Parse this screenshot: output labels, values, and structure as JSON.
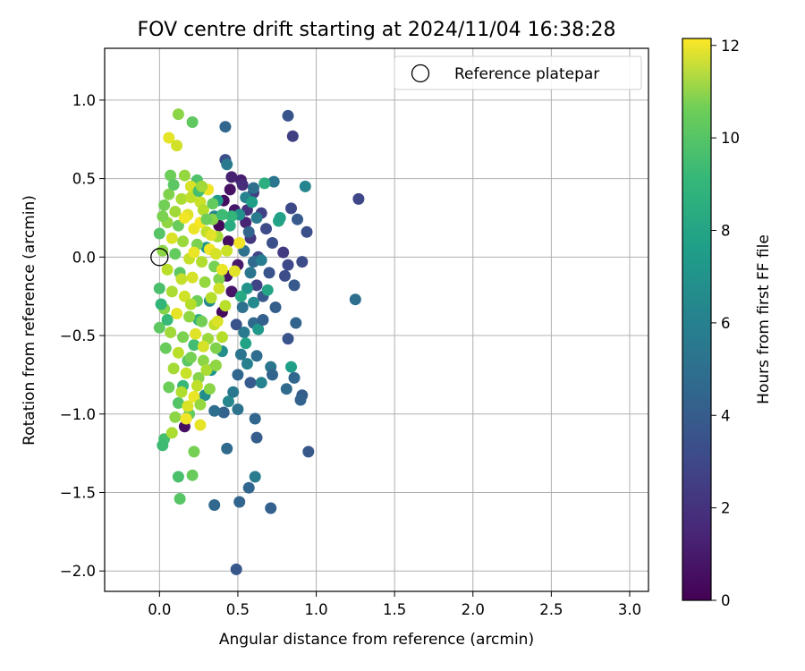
{
  "chart_data": {
    "type": "scatter",
    "title": "FOV centre drift starting at 2024/11/04 16:38:28",
    "xlabel": "Angular distance from reference (arcmin)",
    "ylabel": "Rotation from reference (arcmin)",
    "xlim": [
      -0.35,
      3.12
    ],
    "ylim": [
      -2.13,
      1.33
    ],
    "xticks": [
      0.0,
      0.5,
      1.0,
      1.5,
      2.0,
      2.5,
      3.0
    ],
    "xtick_labels": [
      "0.0",
      "0.5",
      "1.0",
      "1.5",
      "2.0",
      "2.5",
      "3.0"
    ],
    "yticks": [
      -2.0,
      -1.5,
      -1.0,
      -0.5,
      0.0,
      0.5,
      1.0
    ],
    "ytick_labels": [
      "−2.0",
      "−1.5",
      "−1.0",
      "−0.5",
      "0.0",
      "0.5",
      "1.0"
    ],
    "grid": true,
    "legend": {
      "position": "top-right",
      "entries": [
        {
          "label": "Reference platepar",
          "marker": "open-circle",
          "x": 0.0,
          "y": 0.0
        }
      ]
    },
    "colorbar": {
      "label": "Hours from first FF file",
      "colormap": "viridis",
      "min": 0,
      "max": 12.15,
      "ticks": [
        0,
        2,
        4,
        6,
        8,
        10,
        12
      ],
      "tick_labels": [
        "0",
        "2",
        "4",
        "6",
        "8",
        "10",
        "12"
      ]
    },
    "points": [
      {
        "x": 0.41,
        "y": 0.36,
        "h": 0.4
      },
      {
        "x": 0.45,
        "y": 0.43,
        "h": 0.6
      },
      {
        "x": 0.52,
        "y": 0.49,
        "h": 1.0
      },
      {
        "x": 0.48,
        "y": 0.3,
        "h": 0.8
      },
      {
        "x": 0.44,
        "y": 0.1,
        "h": 0.5
      },
      {
        "x": 0.5,
        "y": -0.05,
        "h": 0.9
      },
      {
        "x": 0.46,
        "y": -0.22,
        "h": 0.7
      },
      {
        "x": 0.4,
        "y": -0.35,
        "h": 0.3
      },
      {
        "x": 0.38,
        "y": 0.2,
        "h": 0.2
      },
      {
        "x": 0.43,
        "y": -0.12,
        "h": 0.6
      },
      {
        "x": 0.16,
        "y": -1.08,
        "h": 0.5
      },
      {
        "x": 0.55,
        "y": 0.22,
        "h": 1.2
      },
      {
        "x": 0.46,
        "y": 0.51,
        "h": 1.1
      },
      {
        "x": 0.42,
        "y": 0.62,
        "h": 3.0
      },
      {
        "x": 0.53,
        "y": 0.46,
        "h": 1.6
      },
      {
        "x": 0.56,
        "y": 0.3,
        "h": 1.8
      },
      {
        "x": 0.6,
        "y": 0.41,
        "h": 2.2
      },
      {
        "x": 0.65,
        "y": 0.28,
        "h": 2.4
      },
      {
        "x": 0.58,
        "y": 0.12,
        "h": 2.0
      },
      {
        "x": 0.63,
        "y": 0.0,
        "h": 2.6
      },
      {
        "x": 0.68,
        "y": 0.18,
        "h": 2.8
      },
      {
        "x": 0.72,
        "y": 0.09,
        "h": 3.0
      },
      {
        "x": 0.7,
        "y": -0.1,
        "h": 3.2
      },
      {
        "x": 0.62,
        "y": -0.18,
        "h": 2.5
      },
      {
        "x": 0.66,
        "y": -0.25,
        "h": 3.4
      },
      {
        "x": 0.74,
        "y": -0.32,
        "h": 3.6
      },
      {
        "x": 0.8,
        "y": -0.12,
        "h": 2.9
      },
      {
        "x": 0.79,
        "y": 0.03,
        "h": 2.1
      },
      {
        "x": 0.82,
        "y": -0.05,
        "h": 2.7
      },
      {
        "x": 0.82,
        "y": 0.9,
        "h": 3.2
      },
      {
        "x": 0.85,
        "y": 0.77,
        "h": 2.3
      },
      {
        "x": 0.93,
        "y": 0.45,
        "h": 5.5
      },
      {
        "x": 0.84,
        "y": 0.31,
        "h": 2.7
      },
      {
        "x": 0.88,
        "y": 0.24,
        "h": 3.5
      },
      {
        "x": 0.94,
        "y": 0.16,
        "h": 3.0
      },
      {
        "x": 0.91,
        "y": -0.03,
        "h": 2.8
      },
      {
        "x": 0.86,
        "y": -0.18,
        "h": 3.4
      },
      {
        "x": 0.82,
        "y": -0.52,
        "h": 3.2
      },
      {
        "x": 0.87,
        "y": -0.42,
        "h": 3.9
      },
      {
        "x": 0.84,
        "y": -0.7,
        "h": 6.8
      },
      {
        "x": 0.86,
        "y": -0.77,
        "h": 4.0
      },
      {
        "x": 0.81,
        "y": -0.84,
        "h": 4.2
      },
      {
        "x": 0.91,
        "y": -0.88,
        "h": 3.6
      },
      {
        "x": 0.9,
        "y": -0.91,
        "h": 3.8
      },
      {
        "x": 0.95,
        "y": -1.24,
        "h": 3.3
      },
      {
        "x": 1.27,
        "y": 0.37,
        "h": 2.6
      },
      {
        "x": 1.25,
        "y": -0.27,
        "h": 4.4
      },
      {
        "x": 0.42,
        "y": 0.83,
        "h": 4.0
      },
      {
        "x": 0.43,
        "y": 0.59,
        "h": 5.0
      },
      {
        "x": 0.73,
        "y": 0.48,
        "h": 4.8
      },
      {
        "x": 0.67,
        "y": 0.47,
        "h": 7.6
      },
      {
        "x": 0.76,
        "y": 0.23,
        "h": 7.2
      },
      {
        "x": 0.77,
        "y": 0.25,
        "h": 6.9
      },
      {
        "x": 0.6,
        "y": 0.44,
        "h": 4.4
      },
      {
        "x": 0.55,
        "y": 0.38,
        "h": 5.4
      },
      {
        "x": 0.51,
        "y": 0.27,
        "h": 6.1
      },
      {
        "x": 0.62,
        "y": 0.25,
        "h": 5.0
      },
      {
        "x": 0.57,
        "y": 0.16,
        "h": 3.9
      },
      {
        "x": 0.54,
        "y": 0.04,
        "h": 4.6
      },
      {
        "x": 0.6,
        "y": -0.03,
        "h": 4.2
      },
      {
        "x": 0.65,
        "y": -0.02,
        "h": 5.2
      },
      {
        "x": 0.58,
        "y": -0.1,
        "h": 4.8
      },
      {
        "x": 0.56,
        "y": -0.2,
        "h": 6.2
      },
      {
        "x": 0.6,
        "y": -0.29,
        "h": 5.8
      },
      {
        "x": 0.53,
        "y": -0.32,
        "h": 4.5
      },
      {
        "x": 0.6,
        "y": -0.42,
        "h": 4.1
      },
      {
        "x": 0.54,
        "y": -0.48,
        "h": 5.0
      },
      {
        "x": 0.63,
        "y": -0.46,
        "h": 6.5
      },
      {
        "x": 0.66,
        "y": -0.4,
        "h": 3.7
      },
      {
        "x": 0.69,
        "y": -0.21,
        "h": 7.1
      },
      {
        "x": 0.62,
        "y": -0.63,
        "h": 4.3
      },
      {
        "x": 0.52,
        "y": -0.62,
        "h": 4.7
      },
      {
        "x": 0.56,
        "y": -0.68,
        "h": 5.3
      },
      {
        "x": 0.5,
        "y": -0.75,
        "h": 4.0
      },
      {
        "x": 0.58,
        "y": -0.8,
        "h": 3.5
      },
      {
        "x": 0.47,
        "y": -0.86,
        "h": 4.9
      },
      {
        "x": 0.44,
        "y": -0.92,
        "h": 5.6
      },
      {
        "x": 0.5,
        "y": -0.97,
        "h": 4.6
      },
      {
        "x": 0.41,
        "y": -0.99,
        "h": 3.8
      },
      {
        "x": 0.35,
        "y": -0.98,
        "h": 4.4
      },
      {
        "x": 0.61,
        "y": -1.03,
        "h": 4.0
      },
      {
        "x": 0.62,
        "y": -1.15,
        "h": 3.6
      },
      {
        "x": 0.43,
        "y": -1.22,
        "h": 4.2
      },
      {
        "x": 0.61,
        "y": -1.4,
        "h": 5.1
      },
      {
        "x": 0.57,
        "y": -1.47,
        "h": 4.0
      },
      {
        "x": 0.51,
        "y": -1.56,
        "h": 3.9
      },
      {
        "x": 0.35,
        "y": -1.58,
        "h": 4.1
      },
      {
        "x": 0.71,
        "y": -1.6,
        "h": 3.7
      },
      {
        "x": 0.49,
        "y": -1.99,
        "h": 3.3
      },
      {
        "x": 0.71,
        "y": -0.7,
        "h": 4.7
      },
      {
        "x": 0.72,
        "y": -0.75,
        "h": 3.9
      },
      {
        "x": 0.65,
        "y": -0.8,
        "h": 5.4
      },
      {
        "x": 0.49,
        "y": -0.43,
        "h": 3.1
      },
      {
        "x": 0.32,
        "y": -0.28,
        "h": 5.8
      },
      {
        "x": 0.3,
        "y": 0.06,
        "h": 6.3
      },
      {
        "x": 0.35,
        "y": 0.26,
        "h": 5.7
      },
      {
        "x": 0.37,
        "y": 0.36,
        "h": 6.6
      },
      {
        "x": 0.4,
        "y": -0.6,
        "h": 6.0
      },
      {
        "x": 0.33,
        "y": -0.72,
        "h": 6.4
      },
      {
        "x": 0.29,
        "y": -0.88,
        "h": 5.9
      },
      {
        "x": 0.25,
        "y": -0.4,
        "h": 7.8
      },
      {
        "x": 0.22,
        "y": -0.56,
        "h": 8.4
      },
      {
        "x": 0.18,
        "y": -0.66,
        "h": 9.0
      },
      {
        "x": 0.15,
        "y": -0.82,
        "h": 8.1
      },
      {
        "x": 0.12,
        "y": -0.93,
        "h": 8.8
      },
      {
        "x": 0.19,
        "y": -1.0,
        "h": 9.2
      },
      {
        "x": 0.03,
        "y": -1.16,
        "h": 8.5
      },
      {
        "x": 0.02,
        "y": -1.2,
        "h": 8.3
      },
      {
        "x": 0.12,
        "y": -1.4,
        "h": 8.6
      },
      {
        "x": 0.21,
        "y": -1.39,
        "h": 9.3
      },
      {
        "x": 0.13,
        "y": -1.54,
        "h": 8.9
      },
      {
        "x": 0.22,
        "y": -1.24,
        "h": 9.6
      },
      {
        "x": 0.12,
        "y": 0.91,
        "h": 10.0
      },
      {
        "x": 0.21,
        "y": 0.86,
        "h": 9.1
      },
      {
        "x": 0.06,
        "y": 0.76,
        "h": 11.7
      },
      {
        "x": 0.11,
        "y": 0.71,
        "h": 11.3
      },
      {
        "x": 0.07,
        "y": 0.52,
        "h": 9.4
      },
      {
        "x": 0.16,
        "y": 0.52,
        "h": 10.2
      },
      {
        "x": 0.24,
        "y": 0.49,
        "h": 8.7
      },
      {
        "x": 0.2,
        "y": 0.45,
        "h": 11.4
      },
      {
        "x": 0.31,
        "y": 0.43,
        "h": 11.9
      },
      {
        "x": 0.06,
        "y": 0.4,
        "h": 9.8
      },
      {
        "x": 0.14,
        "y": 0.37,
        "h": 10.6
      },
      {
        "x": 0.26,
        "y": 0.35,
        "h": 11.2
      },
      {
        "x": 0.03,
        "y": 0.33,
        "h": 9.5
      },
      {
        "x": 0.1,
        "y": 0.29,
        "h": 10.4
      },
      {
        "x": 0.18,
        "y": 0.27,
        "h": 11.6
      },
      {
        "x": 0.28,
        "y": 0.3,
        "h": 10.8
      },
      {
        "x": 0.34,
        "y": 0.24,
        "h": 9.9
      },
      {
        "x": 0.05,
        "y": 0.22,
        "h": 10.1
      },
      {
        "x": 0.12,
        "y": 0.2,
        "h": 9.3
      },
      {
        "x": 0.22,
        "y": 0.18,
        "h": 11.8
      },
      {
        "x": 0.3,
        "y": 0.16,
        "h": 11.0
      },
      {
        "x": 0.37,
        "y": 0.13,
        "h": 10.5
      },
      {
        "x": 0.0,
        "y": 0.15,
        "h": 8.9
      },
      {
        "x": 0.08,
        "y": 0.12,
        "h": 11.5
      },
      {
        "x": 0.15,
        "y": 0.1,
        "h": 10.3
      },
      {
        "x": 0.24,
        "y": 0.08,
        "h": 9.7
      },
      {
        "x": 0.32,
        "y": 0.05,
        "h": 11.9
      },
      {
        "x": 0.02,
        "y": 0.04,
        "h": 10.0
      },
      {
        "x": 0.1,
        "y": 0.02,
        "h": 9.2
      },
      {
        "x": 0.19,
        "y": -0.01,
        "h": 11.1
      },
      {
        "x": 0.27,
        "y": -0.03,
        "h": 10.7
      },
      {
        "x": 0.35,
        "y": -0.06,
        "h": 9.6
      },
      {
        "x": 0.05,
        "y": -0.08,
        "h": 10.9
      },
      {
        "x": 0.13,
        "y": -0.1,
        "h": 9.0
      },
      {
        "x": 0.21,
        "y": -0.13,
        "h": 11.4
      },
      {
        "x": 0.29,
        "y": -0.16,
        "h": 10.2
      },
      {
        "x": 0.38,
        "y": -0.14,
        "h": 9.8
      },
      {
        "x": 0.0,
        "y": -0.2,
        "h": 8.6
      },
      {
        "x": 0.08,
        "y": -0.22,
        "h": 10.6
      },
      {
        "x": 0.16,
        "y": -0.25,
        "h": 11.3
      },
      {
        "x": 0.24,
        "y": -0.28,
        "h": 9.4
      },
      {
        "x": 0.33,
        "y": -0.26,
        "h": 10.8
      },
      {
        "x": 0.03,
        "y": -0.33,
        "h": 9.9
      },
      {
        "x": 0.11,
        "y": -0.36,
        "h": 11.7
      },
      {
        "x": 0.19,
        "y": -0.38,
        "h": 10.1
      },
      {
        "x": 0.27,
        "y": -0.41,
        "h": 9.5
      },
      {
        "x": 0.35,
        "y": -0.43,
        "h": 11.0
      },
      {
        "x": 0.0,
        "y": -0.45,
        "h": 9.1
      },
      {
        "x": 0.07,
        "y": -0.48,
        "h": 10.4
      },
      {
        "x": 0.15,
        "y": -0.51,
        "h": 9.7
      },
      {
        "x": 0.23,
        "y": -0.49,
        "h": 11.6
      },
      {
        "x": 0.31,
        "y": -0.52,
        "h": 10.3
      },
      {
        "x": 0.04,
        "y": -0.58,
        "h": 9.3
      },
      {
        "x": 0.12,
        "y": -0.61,
        "h": 10.9
      },
      {
        "x": 0.2,
        "y": -0.64,
        "h": 9.6
      },
      {
        "x": 0.28,
        "y": -0.66,
        "h": 10.0
      },
      {
        "x": 0.36,
        "y": -0.58,
        "h": 9.8
      },
      {
        "x": 0.09,
        "y": -0.71,
        "h": 10.5
      },
      {
        "x": 0.17,
        "y": -0.74,
        "h": 11.2
      },
      {
        "x": 0.25,
        "y": -0.77,
        "h": 9.9
      },
      {
        "x": 0.06,
        "y": -0.83,
        "h": 9.4
      },
      {
        "x": 0.14,
        "y": -0.86,
        "h": 10.7
      },
      {
        "x": 0.22,
        "y": -0.89,
        "h": 11.8
      },
      {
        "x": 0.18,
        "y": -0.95,
        "h": 11.5
      },
      {
        "x": 0.26,
        "y": -0.94,
        "h": 10.2
      },
      {
        "x": 0.1,
        "y": -1.02,
        "h": 10.0
      },
      {
        "x": 0.17,
        "y": -1.03,
        "h": 11.9
      },
      {
        "x": 0.26,
        "y": -1.07,
        "h": 11.7
      },
      {
        "x": 0.08,
        "y": -1.12,
        "h": 10.6
      },
      {
        "x": 0.2,
        "y": 0.38,
        "h": 11.0
      },
      {
        "x": 0.16,
        "y": 0.25,
        "h": 11.9
      },
      {
        "x": 0.26,
        "y": 0.22,
        "h": 12.0
      },
      {
        "x": 0.33,
        "y": 0.14,
        "h": 11.6
      },
      {
        "x": 0.36,
        "y": 0.02,
        "h": 11.4
      },
      {
        "x": 0.4,
        "y": -0.08,
        "h": 11.8
      },
      {
        "x": 0.43,
        "y": 0.04,
        "h": 11.2
      },
      {
        "x": 0.48,
        "y": -0.09,
        "h": 11.6
      },
      {
        "x": 0.51,
        "y": 0.09,
        "h": 11.9
      },
      {
        "x": 0.38,
        "y": -0.2,
        "h": 11.3
      },
      {
        "x": 0.42,
        "y": -0.31,
        "h": 10.9
      },
      {
        "x": 0.37,
        "y": -0.41,
        "h": 11.5
      },
      {
        "x": 0.22,
        "y": 0.03,
        "h": 11.8
      },
      {
        "x": 0.14,
        "y": -0.14,
        "h": 11.1
      },
      {
        "x": 0.2,
        "y": -0.3,
        "h": 10.8
      },
      {
        "x": 0.28,
        "y": -0.57,
        "h": 11.4
      },
      {
        "x": 0.3,
        "y": -0.72,
        "h": 10.6
      },
      {
        "x": 0.24,
        "y": -0.82,
        "h": 11.0
      },
      {
        "x": 0.46,
        "y": 0.26,
        "h": 8.0
      },
      {
        "x": 0.4,
        "y": 0.27,
        "h": 8.3
      },
      {
        "x": 0.34,
        "y": 0.34,
        "h": 9.2
      },
      {
        "x": 0.36,
        "y": -0.69,
        "h": 10.1
      },
      {
        "x": 0.25,
        "y": 0.42,
        "h": 8.5
      },
      {
        "x": 0.52,
        "y": -0.25,
        "h": 7.3
      },
      {
        "x": 0.4,
        "y": -0.51,
        "h": 10.8
      },
      {
        "x": 0.05,
        "y": -0.4,
        "h": 8.2
      },
      {
        "x": 0.01,
        "y": -0.3,
        "h": 8.0
      },
      {
        "x": 0.09,
        "y": 0.46,
        "h": 9.0
      },
      {
        "x": 0.02,
        "y": 0.26,
        "h": 9.7
      },
      {
        "x": 0.27,
        "y": 0.45,
        "h": 10.4
      },
      {
        "x": 0.32,
        "y": -0.84,
        "h": 10.0
      },
      {
        "x": 0.45,
        "y": 0.2,
        "h": 7.5
      },
      {
        "x": 0.55,
        "y": -0.55,
        "h": 7.0
      },
      {
        "x": 0.59,
        "y": 0.35,
        "h": 6.8
      },
      {
        "x": 0.3,
        "y": 0.24,
        "h": 9.4
      }
    ]
  }
}
